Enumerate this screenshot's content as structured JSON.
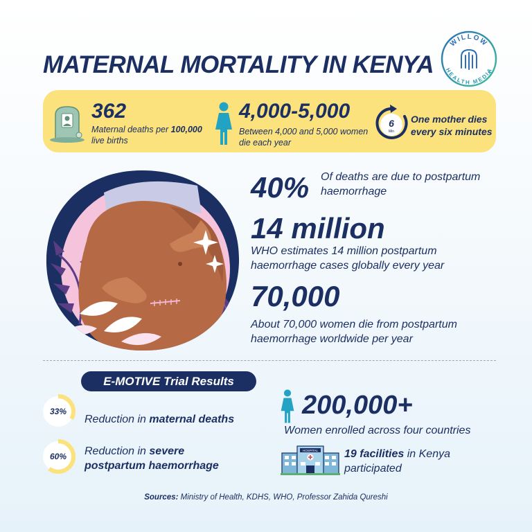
{
  "title": "MATERNAL MORTALITY IN KENYA",
  "logo": {
    "line1": "WILLOW",
    "line2": "HEALTH MEDIA"
  },
  "band": {
    "stat1": {
      "value": "362",
      "desc_pre": "Maternal deaths per ",
      "desc_bold": "100,000",
      "desc_post": "live births",
      "icon": "gravestone-icon"
    },
    "stat2": {
      "value": "4,000-5,000",
      "desc_line1": "Between 4,000 and 5,000 women",
      "desc_line2": "die each year",
      "icon": "woman-icon"
    },
    "stat3": {
      "clock_number": "6",
      "clock_unit": "Min",
      "line1": "One mother dies",
      "line2_pre": "every ",
      "line2_bold": "six minutes",
      "icon": "clock-icon"
    }
  },
  "facts": [
    {
      "value": "40%",
      "line1": "Of deaths are due to postpartum",
      "line2": "haemorrhage"
    },
    {
      "value": "14 million",
      "line1": "WHO estimates 14 million postpartum",
      "line2": "haemorrhage cases globally every year"
    },
    {
      "value": "70,000",
      "line1": "About 70,000 women die from postpartum",
      "line2": "haemorrhage worldwide per year"
    }
  ],
  "trial": {
    "heading": "E-MOTIVE Trial Results",
    "items": [
      {
        "percent_label": "33%",
        "percent": 33,
        "line1_pre": "Reduction in ",
        "line1_bold": "maternal deaths"
      },
      {
        "percent_label": "60%",
        "percent": 60,
        "line1_pre": "Reduction in ",
        "line1_bold": "severe",
        "line2_bold": "postpartum haemorrhage"
      }
    ],
    "enrolled": {
      "value": "200,000+",
      "desc": "Women enrolled across four countries"
    },
    "facilities": {
      "bold": "19 facilities",
      "rest": " in Kenya",
      "line2": "participated",
      "sign": "HOSPITAL"
    }
  },
  "sources": {
    "label": "Sources:",
    "text": " Ministry of Health, KDHS, WHO, Professor Zahida Qureshi"
  },
  "colors": {
    "navy": "#1b2f63",
    "yellow": "#fbe27c",
    "teal": "#22a3c3",
    "pink": "#f6c3dd",
    "skin": "#b56a45",
    "purple": "#5a3d84"
  }
}
